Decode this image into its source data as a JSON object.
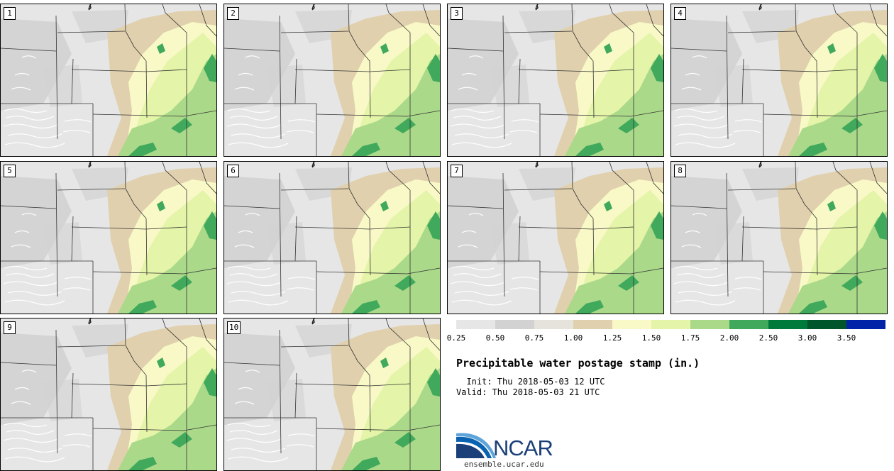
{
  "panels": [
    {
      "label": "1"
    },
    {
      "label": "2"
    },
    {
      "label": "3"
    },
    {
      "label": "4"
    },
    {
      "label": "5"
    },
    {
      "label": "6"
    },
    {
      "label": "7"
    },
    {
      "label": "8"
    },
    {
      "label": "9"
    },
    {
      "label": "10"
    }
  ],
  "colorbar": {
    "bins": [
      {
        "color": "#e6e6e6"
      },
      {
        "color": "#d2d2d2"
      },
      {
        "color": "#e6e3dc"
      },
      {
        "color": "#e0d0ad"
      },
      {
        "color": "#f9f9c8"
      },
      {
        "color": "#e4f4a8"
      },
      {
        "color": "#abd98a"
      },
      {
        "color": "#41a95c"
      },
      {
        "color": "#007a3a"
      },
      {
        "color": "#00552a"
      },
      {
        "color": "#0023a8"
      }
    ],
    "ticks": [
      "0.25",
      "0.50",
      "0.75",
      "1.00",
      "1.25",
      "1.50",
      "1.75",
      "2.00",
      "2.50",
      "3.00",
      "3.50"
    ]
  },
  "title": "Precipitable water postage stamp (in.)",
  "init_text": "  Init: Thu 2018-05-03 12 UTC",
  "valid_text": "Valid: Thu 2018-05-03 21 UTC",
  "logo": {
    "name": "NCAR",
    "url": "ensemble.ucar.edu"
  }
}
